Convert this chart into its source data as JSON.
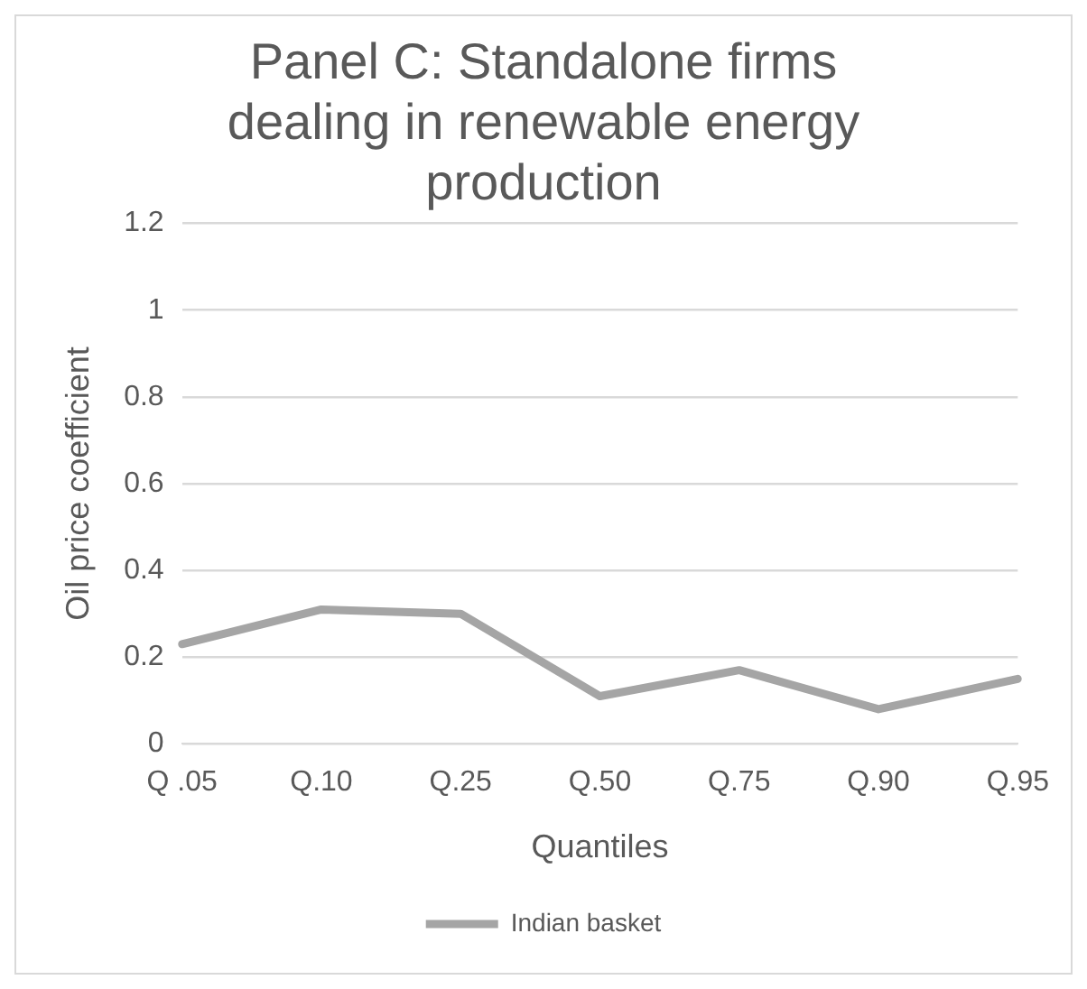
{
  "chart_data": {
    "type": "line",
    "title": "Panel C: Standalone firms dealing in renewable energy production",
    "xlabel": "Quantiles",
    "ylabel": "Oil price coefficient",
    "categories": [
      "Q .05",
      "Q.10",
      "Q.25",
      "Q.50",
      "Q.75",
      "Q.90",
      "Q.95"
    ],
    "series": [
      {
        "name": "Indian basket",
        "color": "#a5a5a5",
        "values": [
          0.23,
          0.31,
          0.3,
          0.11,
          0.17,
          0.08,
          0.15
        ]
      }
    ],
    "ylim": [
      0,
      1.2
    ],
    "yticks": [
      0,
      0.2,
      0.4,
      0.6,
      0.8,
      1,
      1.2
    ],
    "grid": "y",
    "legend": "bottom",
    "marker": "none",
    "line_style": "solid"
  }
}
